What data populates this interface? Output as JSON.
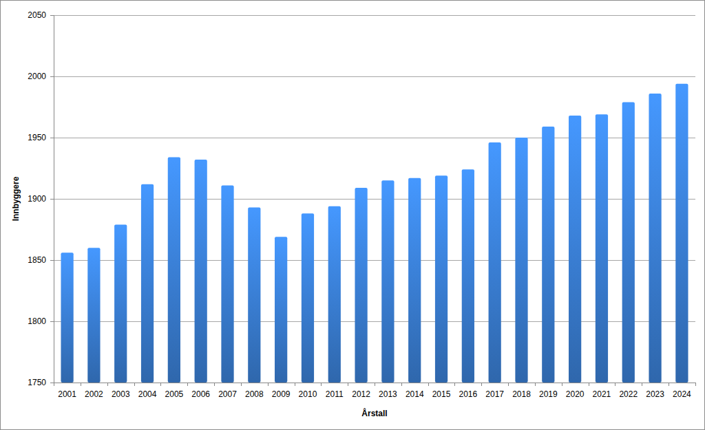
{
  "chart_data": {
    "type": "bar",
    "x_label": "Årstall",
    "y_label": "Innbyggere",
    "categories": [
      "2001",
      "2002",
      "2003",
      "2004",
      "2005",
      "2006",
      "2007",
      "2008",
      "2009",
      "2010",
      "2011",
      "2012",
      "2013",
      "2014",
      "2015",
      "2016",
      "2017",
      "2018",
      "2019",
      "2020",
      "2021",
      "2022",
      "2023",
      "2024"
    ],
    "values": [
      1856,
      1860,
      1879,
      1912,
      1934,
      1932,
      1911,
      1893,
      1869,
      1888,
      1894,
      1909,
      1915,
      1917,
      1919,
      1924,
      1946,
      1950,
      1959,
      1968,
      1969,
      1979,
      1986,
      1994
    ],
    "color": "#3a7fd5",
    "ylim": [
      1750,
      2050
    ],
    "yticks": [
      1750,
      1800,
      1850,
      1900,
      1950,
      2000,
      2050
    ],
    "grid": true
  }
}
